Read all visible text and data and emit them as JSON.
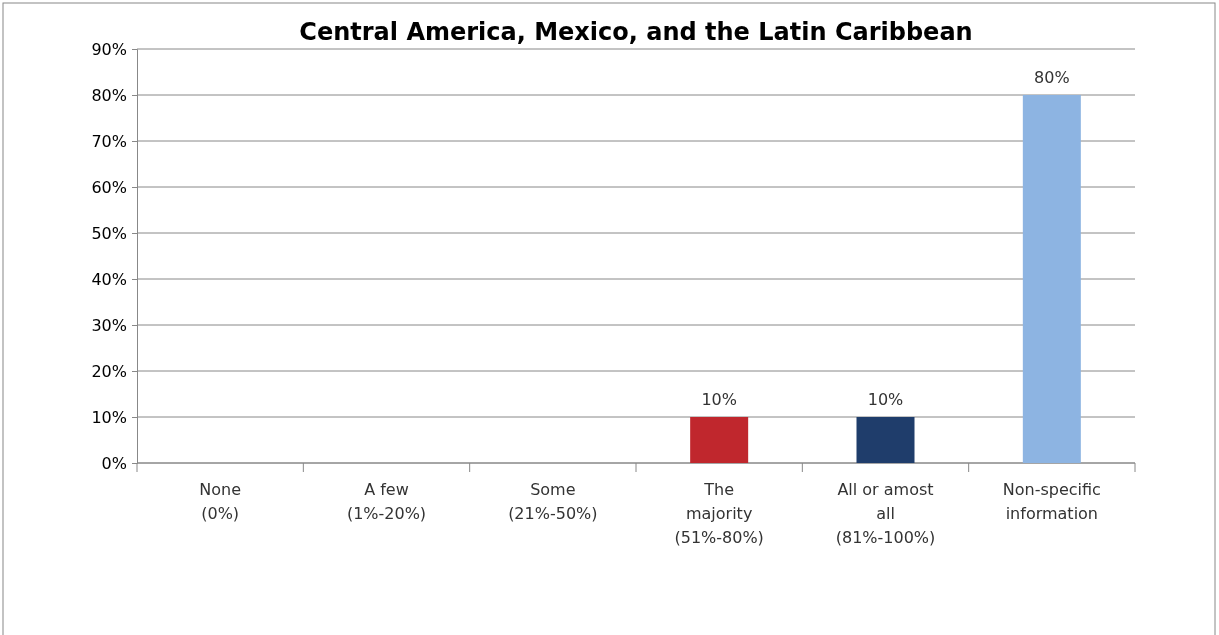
{
  "chart_data": {
    "type": "bar",
    "title": "Central America, Mexico, and the Latin Caribbean",
    "categories": [
      "None\n(0%)",
      "A few\n(1%-20%)",
      "Some\n(21%-50%)",
      "The\nmajority\n(51%-80%)",
      "All or amost\nall\n(81%-100%)",
      "Non-specific\ninformation"
    ],
    "values": [
      0,
      0,
      0,
      10,
      10,
      80
    ],
    "colors": [
      "#c0272d",
      "#c0272d",
      "#c0272d",
      "#c0272d",
      "#1f3d6b",
      "#8db4e2"
    ],
    "value_labels": [
      null,
      null,
      null,
      "10%",
      "10%",
      "80%"
    ],
    "ylim": [
      0,
      90
    ],
    "yticks": [
      {
        "value": 0,
        "label": "0%"
      },
      {
        "value": 10,
        "label": "10%"
      },
      {
        "value": 20,
        "label": "20%"
      },
      {
        "value": 30,
        "label": "30%"
      },
      {
        "value": 40,
        "label": "40%"
      },
      {
        "value": 50,
        "label": "50%"
      },
      {
        "value": 60,
        "label": "60%"
      },
      {
        "value": 70,
        "label": "70%"
      },
      {
        "value": 80,
        "label": "80%"
      },
      {
        "value": 90,
        "label": "90%"
      }
    ],
    "grid": "y"
  }
}
